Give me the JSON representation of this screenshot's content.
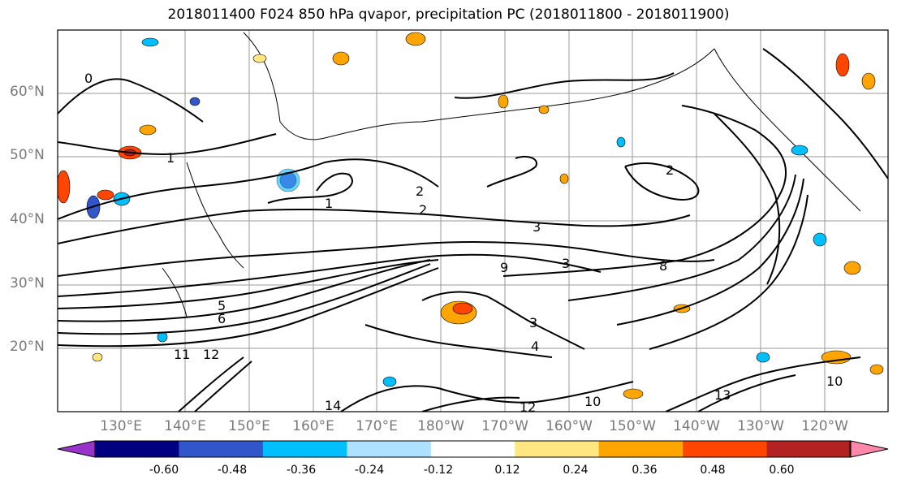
{
  "title": "2018011400 F024 850 hPa qvapor, precipitation PC (2018011800 - 2018011900)",
  "lat_labels": [
    "60°N",
    "50°N",
    "40°N",
    "30°N",
    "20°N"
  ],
  "lon_labels": [
    "130°E",
    "140°E",
    "150°E",
    "160°E",
    "170°E",
    "180°W",
    "170°W",
    "160°W",
    "150°W",
    "140°W",
    "130°W",
    "120°W"
  ],
  "colorbar": {
    "colors": [
      "#9933cc",
      "#000080",
      "#3355cc",
      "#00bfff",
      "#aee0ff",
      "#ffffff",
      "#ffe680",
      "#ffa500",
      "#ff4500",
      "#b22222",
      "#ff88aa"
    ],
    "labels": [
      "-0.60",
      "-0.48",
      "-0.36",
      "-0.24",
      "-0.12",
      "0.12",
      "0.24",
      "0.36",
      "0.48",
      "0.60"
    ]
  },
  "contour_labels": [
    "0",
    "1",
    "1",
    "2",
    "2",
    "2",
    "3",
    "3",
    "3",
    "4",
    "5",
    "6",
    "8",
    "9",
    "10",
    "11",
    "12",
    "13",
    "14",
    "12",
    "10"
  ]
}
